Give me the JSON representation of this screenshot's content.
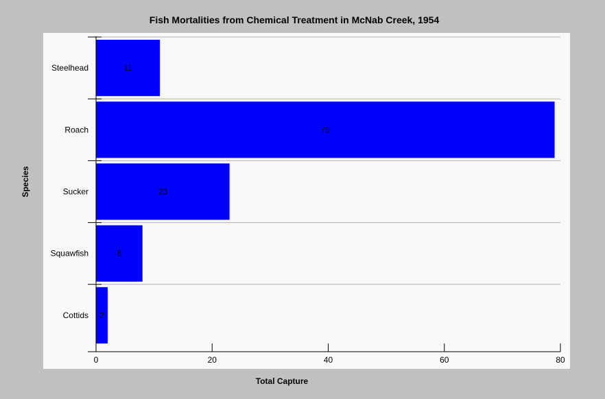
{
  "chart_data": {
    "type": "bar",
    "orientation": "horizontal",
    "title": "Fish Mortalities from Chemical Treatment in McNab Creek, 1954",
    "xlabel": "Total Capture",
    "ylabel": "Species",
    "categories": [
      "Steelhead",
      "Roach",
      "Sucker",
      "Squawfish",
      "Cottids"
    ],
    "values": [
      11,
      79,
      23,
      8,
      2
    ],
    "data_labels": [
      "11",
      "79",
      "23",
      "8",
      "2"
    ],
    "xlim": [
      0,
      80
    ],
    "xticks": [
      0,
      20,
      40,
      60,
      80
    ],
    "xtick_labels": [
      "0",
      "20",
      "40",
      "60",
      "80"
    ],
    "bar_color": "#0000ff",
    "grid": "horizontal separators between categories",
    "legend": "none"
  }
}
